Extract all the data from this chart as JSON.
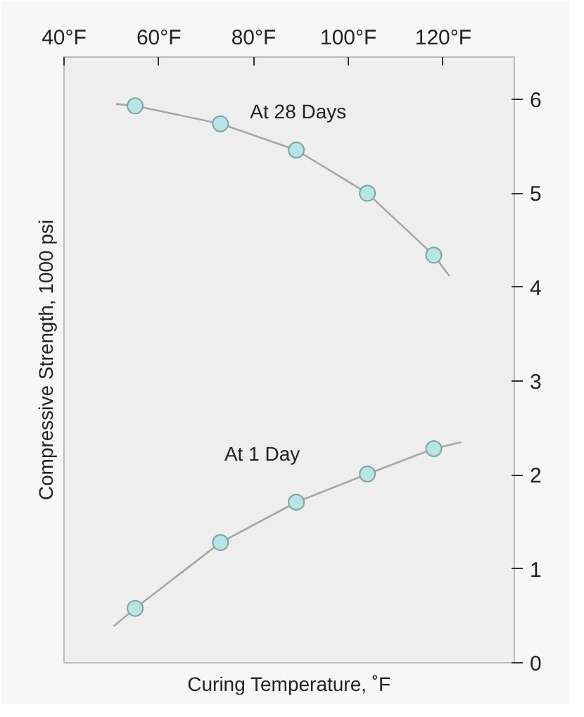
{
  "chart_data": {
    "type": "line",
    "xlabel": "Curing Temperature, ˚F",
    "ylabel": "Compressive Strength, 1000 psi",
    "xlim": [
      40,
      135
    ],
    "ylim": [
      0,
      6.45
    ],
    "xticks": [
      {
        "value": 40,
        "label": "40°F"
      },
      {
        "value": 60,
        "label": "60°F"
      },
      {
        "value": 80,
        "label": "80°F"
      },
      {
        "value": 100,
        "label": "100°F"
      },
      {
        "value": 120,
        "label": "120°F"
      }
    ],
    "yticks": [
      0,
      1,
      2,
      3,
      4,
      5,
      6
    ],
    "grid": false,
    "series": [
      {
        "color": "#a6a6a6",
        "x": [
          51,
          55,
          73,
          89,
          104,
          118,
          121.3
        ],
        "values": [
          5.95,
          5.93,
          5.74,
          5.46,
          5.0,
          4.34,
          4.12
        ]
      },
      {
        "color": "#a6a6a6",
        "x": [
          50.5,
          55,
          73,
          89,
          104,
          118,
          123.8
        ],
        "values": [
          0.39,
          0.58,
          1.28,
          1.71,
          2.01,
          2.28,
          2.35
        ]
      },
      {
        "type": "scatter",
        "marker": "circle",
        "color": "#b7e4e4",
        "x": [
          55,
          73,
          89,
          104,
          118
        ],
        "values": [
          5.93,
          5.74,
          5.46,
          5.0,
          4.34
        ]
      },
      {
        "type": "scatter",
        "marker": "circle",
        "color": "#b7e4e4",
        "x": [
          55,
          73,
          89,
          104,
          118
        ],
        "values": [
          0.58,
          1.28,
          1.71,
          2.01,
          2.28
        ]
      }
    ],
    "annotations": [
      "At 28 Days",
      "At 1 Day"
    ]
  }
}
